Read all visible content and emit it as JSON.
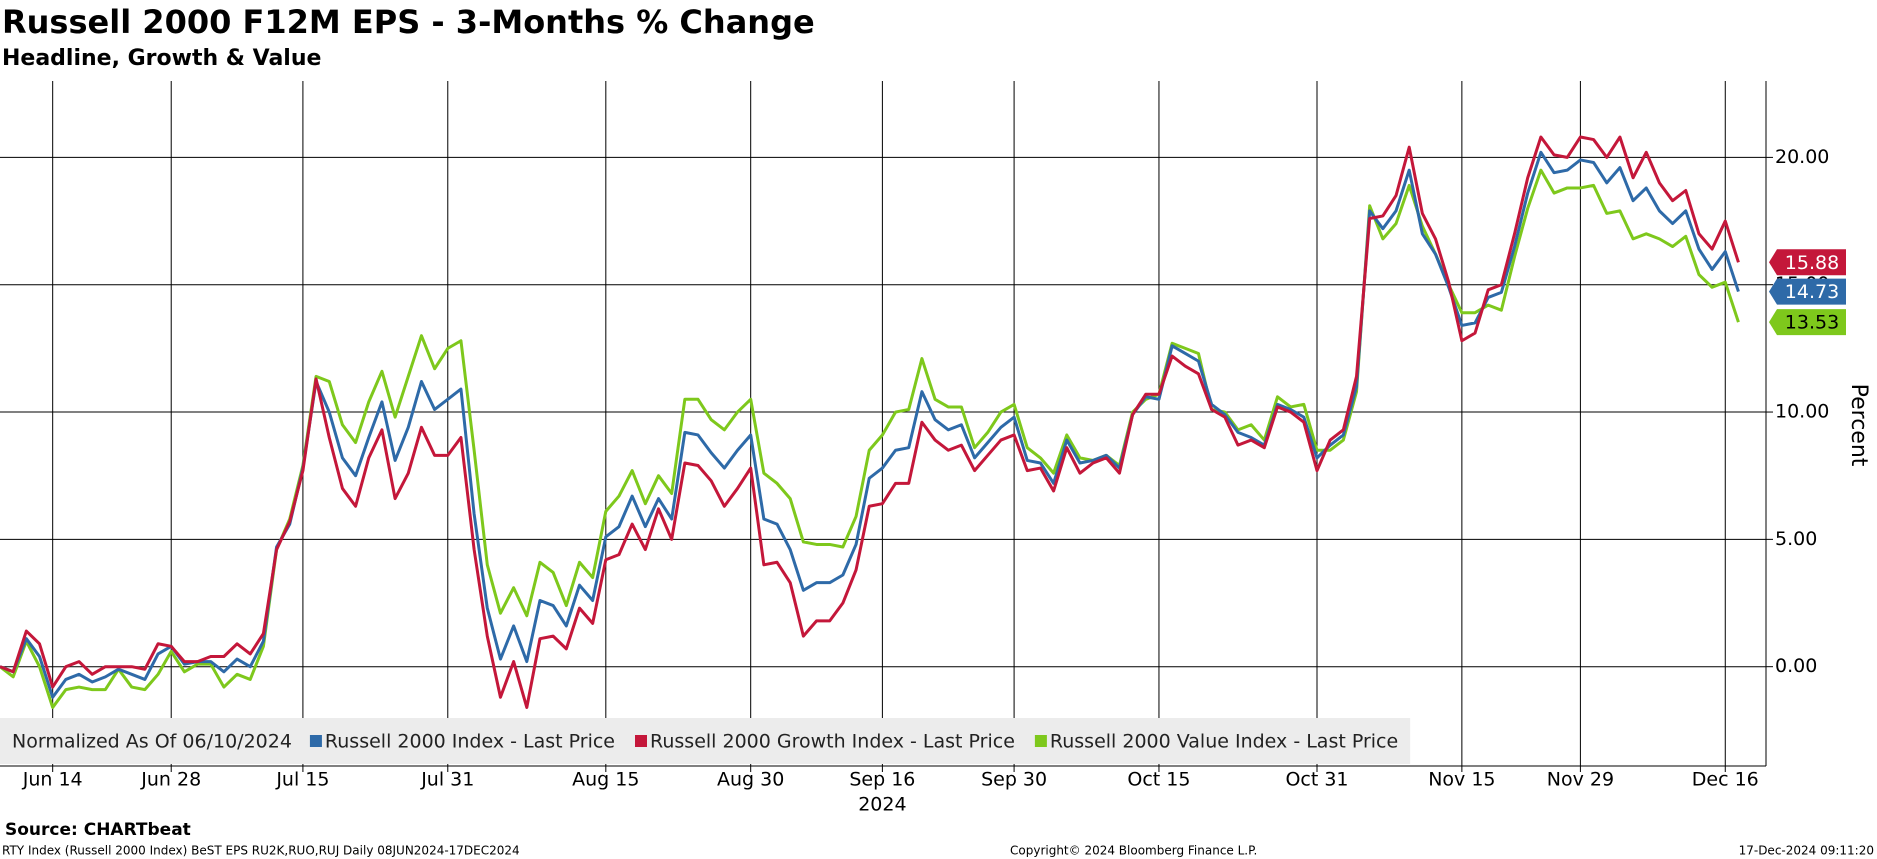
{
  "chart_data": {
    "type": "line",
    "title": "Russell 2000 F12M EPS - 3-Months % Change",
    "subtitle": "Headline, Growth & Value",
    "ylabel": "Percent",
    "x_year_label": "2024",
    "legend_title": "Normalized As Of 06/10/2024",
    "source": "Source: CHARTbeat",
    "footnote": "RTY Index (Russell 2000 Index) BeST EPS RU2K,RUO,RUJ  Daily 08JUN2024-17DEC2024",
    "copyright": "Copyright© 2024 Bloomberg Finance L.P.",
    "timestamp": "17-Dec-2024 09:11:20",
    "grid": true,
    "ylim": [
      -3.9,
      23
    ],
    "yticks": [
      {
        "value": 0,
        "label": "0.00"
      },
      {
        "value": 5,
        "label": "5.00"
      },
      {
        "value": 10,
        "label": "10.00"
      },
      {
        "value": 15,
        "label": "15.00"
      },
      {
        "value": 20,
        "label": "20.00"
      }
    ],
    "categories": [
      null,
      null,
      null,
      null,
      "Jun 14",
      null,
      null,
      null,
      null,
      null,
      null,
      null,
      null,
      "Jun 28",
      null,
      null,
      null,
      null,
      null,
      null,
      null,
      null,
      null,
      "Jul 15",
      null,
      null,
      null,
      null,
      null,
      null,
      null,
      null,
      null,
      null,
      "Jul 31",
      null,
      null,
      null,
      null,
      null,
      null,
      null,
      null,
      null,
      null,
      null,
      "Aug 15",
      null,
      null,
      null,
      null,
      null,
      null,
      null,
      null,
      null,
      null,
      "Aug 30",
      null,
      null,
      null,
      null,
      null,
      null,
      null,
      null,
      null,
      "Sep 16",
      null,
      null,
      null,
      null,
      null,
      null,
      null,
      null,
      null,
      "Sep 30",
      null,
      null,
      null,
      null,
      null,
      null,
      null,
      null,
      null,
      null,
      "Oct 15",
      null,
      null,
      null,
      null,
      null,
      null,
      null,
      null,
      null,
      null,
      null,
      "Oct 31",
      null,
      null,
      null,
      null,
      null,
      null,
      null,
      null,
      null,
      null,
      "Nov 15",
      null,
      null,
      null,
      null,
      null,
      null,
      null,
      null,
      "Nov 29",
      null,
      null,
      null,
      null,
      null,
      null,
      null,
      null,
      null,
      null,
      "Dec 16",
      null
    ],
    "series": [
      {
        "name": "Russell 2000 Index - Last Price",
        "color": "#2e6aa8",
        "values": [
          0.0,
          -0.2,
          1.1,
          0.4,
          -1.2,
          -0.5,
          -0.3,
          -0.6,
          -0.4,
          -0.1,
          -0.3,
          -0.5,
          0.5,
          0.8,
          0.1,
          0.2,
          0.2,
          -0.2,
          0.3,
          0.0,
          1.0,
          4.7,
          5.6,
          7.8,
          11.2,
          10.0,
          8.2,
          7.5,
          9.0,
          10.4,
          8.1,
          9.4,
          11.2,
          10.1,
          10.5,
          10.9,
          6.0,
          2.3,
          0.3,
          1.6,
          0.2,
          2.6,
          2.4,
          1.6,
          3.2,
          2.6,
          5.1,
          5.5,
          6.7,
          5.5,
          6.6,
          5.8,
          9.2,
          9.1,
          8.4,
          7.8,
          8.5,
          9.1,
          5.8,
          5.6,
          4.6,
          3.0,
          3.3,
          3.3,
          3.6,
          4.8,
          7.4,
          7.8,
          8.5,
          8.6,
          10.8,
          9.7,
          9.3,
          9.5,
          8.2,
          8.8,
          9.4,
          9.8,
          8.1,
          8.0,
          7.2,
          8.9,
          8.0,
          8.1,
          8.3,
          7.8,
          9.9,
          10.6,
          10.5,
          12.6,
          12.3,
          12.0,
          10.3,
          9.9,
          9.2,
          9.0,
          8.7,
          10.3,
          10.1,
          9.8,
          8.2,
          8.7,
          9.1,
          11.0,
          17.9,
          17.2,
          17.9,
          19.5,
          17.0,
          16.2,
          14.9,
          13.4,
          13.5,
          14.5,
          14.7,
          16.5,
          18.6,
          20.2,
          19.4,
          19.5,
          19.9,
          19.8,
          19.0,
          19.6,
          18.3,
          18.8,
          17.9,
          17.4,
          17.9,
          16.4,
          15.6,
          16.3,
          14.73
        ]
      },
      {
        "name": "Russell 2000 Growth Index - Last Price",
        "color": "#c4173a",
        "values": [
          0.0,
          -0.2,
          1.4,
          0.9,
          -0.8,
          0.0,
          0.2,
          -0.3,
          0.0,
          0.0,
          0.0,
          -0.1,
          0.9,
          0.8,
          0.2,
          0.2,
          0.4,
          0.4,
          0.9,
          0.5,
          1.3,
          4.6,
          5.7,
          7.7,
          11.3,
          9.0,
          7.0,
          6.3,
          8.2,
          9.3,
          6.6,
          7.6,
          9.4,
          8.3,
          8.3,
          9.0,
          4.6,
          1.2,
          -1.2,
          0.2,
          -1.6,
          1.1,
          1.2,
          0.7,
          2.3,
          1.7,
          4.2,
          4.4,
          5.6,
          4.6,
          6.2,
          5.0,
          8.0,
          7.9,
          7.3,
          6.3,
          7.0,
          7.8,
          4.0,
          4.1,
          3.3,
          1.2,
          1.8,
          1.8,
          2.5,
          3.8,
          6.3,
          6.4,
          7.2,
          7.2,
          9.6,
          8.9,
          8.5,
          8.7,
          7.7,
          8.3,
          8.9,
          9.1,
          7.7,
          7.8,
          6.9,
          8.6,
          7.6,
          8.0,
          8.2,
          7.6,
          9.9,
          10.7,
          10.7,
          12.2,
          11.8,
          11.5,
          10.1,
          9.8,
          8.7,
          8.9,
          8.6,
          10.2,
          10.0,
          9.6,
          7.7,
          8.9,
          9.3,
          11.4,
          17.6,
          17.7,
          18.5,
          20.4,
          17.8,
          16.8,
          15.1,
          12.8,
          13.1,
          14.8,
          15.0,
          17.0,
          19.2,
          20.8,
          20.1,
          20.0,
          20.8,
          20.7,
          20.0,
          20.8,
          19.2,
          20.2,
          19.0,
          18.3,
          18.7,
          17.0,
          16.4,
          17.5,
          15.88
        ]
      },
      {
        "name": "Russell 2000 Value Index - Last Price",
        "color": "#7ec81c",
        "values": [
          0.0,
          -0.4,
          1.0,
          0.0,
          -1.6,
          -0.9,
          -0.8,
          -0.9,
          -0.9,
          -0.1,
          -0.8,
          -0.9,
          -0.3,
          0.6,
          -0.2,
          0.1,
          0.1,
          -0.8,
          -0.3,
          -0.5,
          0.8,
          4.6,
          5.8,
          7.9,
          11.4,
          11.2,
          9.5,
          8.8,
          10.4,
          11.6,
          9.8,
          11.4,
          13.0,
          11.7,
          12.5,
          12.8,
          8.5,
          4.0,
          2.1,
          3.1,
          2.0,
          4.1,
          3.7,
          2.4,
          4.1,
          3.5,
          6.1,
          6.7,
          7.7,
          6.4,
          7.5,
          6.8,
          10.5,
          10.5,
          9.7,
          9.3,
          10.0,
          10.5,
          7.6,
          7.2,
          6.6,
          4.9,
          4.8,
          4.8,
          4.7,
          5.9,
          8.5,
          9.1,
          10.0,
          10.1,
          12.1,
          10.5,
          10.2,
          10.2,
          8.6,
          9.2,
          10.0,
          10.3,
          8.6,
          8.2,
          7.6,
          9.1,
          8.2,
          8.1,
          8.3,
          7.9,
          10.0,
          10.5,
          10.7,
          12.7,
          12.5,
          12.3,
          10.1,
          10.0,
          9.3,
          9.5,
          8.9,
          10.6,
          10.2,
          10.3,
          8.5,
          8.5,
          8.9,
          10.8,
          18.1,
          16.8,
          17.4,
          18.9,
          17.3,
          16.2,
          15.0,
          13.9,
          13.9,
          14.2,
          14.0,
          16.1,
          18.0,
          19.5,
          18.6,
          18.8,
          18.8,
          18.9,
          17.8,
          17.9,
          16.8,
          17.0,
          16.8,
          16.5,
          16.9,
          15.4,
          14.9,
          15.1,
          13.53
        ]
      }
    ]
  }
}
